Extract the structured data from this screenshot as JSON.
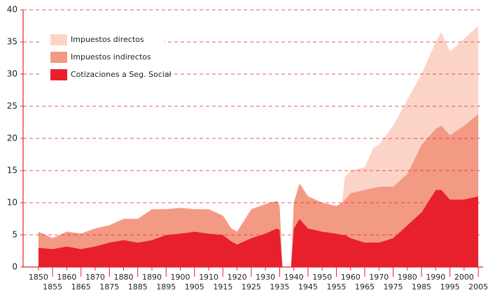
{
  "chart_data": {
    "type": "stacked_area",
    "x": [
      1850,
      1855,
      1860,
      1865,
      1870,
      1875,
      1880,
      1885,
      1890,
      1895,
      1900,
      1905,
      1910,
      1915,
      1918,
      1920,
      1925,
      1930,
      1934,
      1935,
      1936,
      1939,
      1940,
      1942,
      1945,
      1950,
      1955,
      1957,
      1958,
      1960,
      1965,
      1968,
      1970,
      1975,
      1980,
      1985,
      1990,
      1992,
      1995,
      2000,
      2005
    ],
    "series": [
      {
        "name": "Cotizaciones a Seg. Social",
        "color": "#e8202e",
        "values": [
          3,
          2.8,
          3.2,
          2.8,
          3.2,
          3.8,
          4.2,
          3.8,
          4.2,
          5,
          5.2,
          5.5,
          5.2,
          5,
          4,
          3.5,
          4.5,
          5.2,
          6,
          5.8,
          0,
          0,
          6,
          7.5,
          6,
          5.5,
          5.2,
          5,
          5,
          4.5,
          3.8,
          3.8,
          3.8,
          4.5,
          6.5,
          8.5,
          12,
          12,
          10.5,
          10.5,
          11
        ]
      },
      {
        "name": "Impuestos indirectos",
        "color": "#f39a85",
        "values": [
          2.5,
          1.7,
          2.3,
          2.4,
          2.8,
          2.7,
          3.3,
          3.7,
          4.8,
          4,
          4,
          3.5,
          3.8,
          3,
          2,
          2,
          4.5,
          4.6,
          4.3,
          3.7,
          0,
          0,
          4,
          5.5,
          5,
          4.5,
          4.3,
          5,
          5.5,
          7,
          8.2,
          8.5,
          8.7,
          8,
          8,
          10.5,
          9.5,
          10,
          10,
          11.5,
          12.8
        ]
      },
      {
        "name": "Impuestos directos",
        "color": "#fcd4c7",
        "values": [
          0,
          0,
          0,
          0,
          0,
          0,
          0,
          0,
          0,
          0,
          0,
          0,
          0,
          0,
          0,
          0,
          0,
          0,
          0,
          0,
          0,
          0,
          0,
          0,
          0,
          0,
          0,
          0,
          3.5,
          3.5,
          3.5,
          6.2,
          6.5,
          9.5,
          11.5,
          11,
          13.5,
          14.5,
          13,
          13.5,
          13.7
        ]
      }
    ],
    "xlim": [
      1844.6,
      2006.7
    ],
    "xticks": [
      1850,
      1855,
      1860,
      1865,
      1870,
      1875,
      1880,
      1885,
      1890,
      1895,
      1900,
      1905,
      1910,
      1915,
      1920,
      1925,
      1930,
      1935,
      1940,
      1945,
      1950,
      1955,
      1960,
      1965,
      1970,
      1975,
      1980,
      1985,
      1990,
      1995,
      2000,
      2005
    ],
    "ylim": [
      0,
      40
    ],
    "yticks": [
      0,
      5,
      10,
      15,
      20,
      25,
      30,
      35,
      40
    ],
    "grid": true,
    "grid_color": "#e8202e",
    "legend": "upper left"
  }
}
